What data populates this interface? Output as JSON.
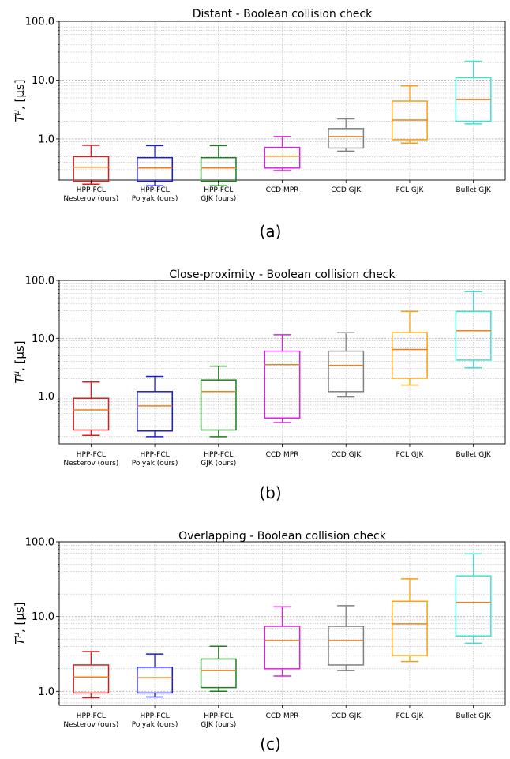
{
  "chart_data": [
    {
      "type": "box",
      "title": "Distant - Boolean collision check",
      "ylabel": "T^μ, [μs]",
      "ylabel_main": "T",
      "ylabel_sup": "μ",
      "ylabel_rest": ", [μs]",
      "yscale": "log",
      "ylim": [
        0.2,
        100
      ],
      "yticks": [
        "1.0",
        "10.0",
        "100.0"
      ],
      "grid": true,
      "caption": "(a)",
      "series": [
        {
          "label": [
            "HPP-FCL",
            "Nesterov (ours)"
          ],
          "color": "#d62020",
          "whislo": 0.17,
          "q1": 0.19,
          "median": 0.33,
          "q3": 0.5,
          "whishi": 0.78
        },
        {
          "label": [
            "HPP-FCL",
            "Polyak (ours)"
          ],
          "color": "#1a1ae0",
          "whislo": 0.16,
          "q1": 0.19,
          "median": 0.32,
          "q3": 0.48,
          "whishi": 0.77
        },
        {
          "label": [
            "HPP-FCL",
            "GJK (ours)"
          ],
          "color": "#1e7d1e",
          "whislo": 0.16,
          "q1": 0.19,
          "median": 0.32,
          "q3": 0.48,
          "whishi": 0.77
        },
        {
          "label": [
            "CCD MPR"
          ],
          "color": "#e020e0",
          "whislo": 0.29,
          "q1": 0.32,
          "median": 0.51,
          "q3": 0.72,
          "whishi": 1.1
        },
        {
          "label": [
            "CCD GJK"
          ],
          "color": "#808080",
          "whislo": 0.62,
          "q1": 0.7,
          "median": 1.1,
          "q3": 1.5,
          "whishi": 2.2
        },
        {
          "label": [
            "FCL GJK"
          ],
          "color": "#f5a010",
          "whislo": 0.85,
          "q1": 0.97,
          "median": 2.1,
          "q3": 4.4,
          "whishi": 8.0
        },
        {
          "label": [
            "Bullet GJK"
          ],
          "color": "#40e0d0",
          "whislo": 1.8,
          "q1": 2.0,
          "median": 4.7,
          "q3": 11.0,
          "whishi": 21.0
        }
      ]
    },
    {
      "type": "box",
      "title": "Close-proximity - Boolean collision check",
      "ylabel": "T^μ, [μs]",
      "ylabel_main": "T",
      "ylabel_sup": "μ",
      "ylabel_rest": ", [μs]",
      "yscale": "log",
      "ylim": [
        0.15,
        100
      ],
      "yticks": [
        "1.0",
        "10.0",
        "100.0"
      ],
      "grid": true,
      "caption": "(b)",
      "series": [
        {
          "label": [
            "HPP-FCL",
            "Nesterov (ours)"
          ],
          "color": "#d62020",
          "whislo": 0.21,
          "q1": 0.26,
          "median": 0.58,
          "q3": 0.92,
          "whishi": 1.75
        },
        {
          "label": [
            "HPP-FCL",
            "Polyak (ours)"
          ],
          "color": "#1a1ae0",
          "whislo": 0.2,
          "q1": 0.25,
          "median": 0.68,
          "q3": 1.2,
          "whishi": 2.2
        },
        {
          "label": [
            "HPP-FCL",
            "GJK (ours)"
          ],
          "color": "#1e7d1e",
          "whislo": 0.2,
          "q1": 0.26,
          "median": 1.2,
          "q3": 1.9,
          "whishi": 3.3
        },
        {
          "label": [
            "CCD MPR"
          ],
          "color": "#e020e0",
          "whislo": 0.35,
          "q1": 0.42,
          "median": 3.5,
          "q3": 6.0,
          "whishi": 11.5
        },
        {
          "label": [
            "CCD GJK"
          ],
          "color": "#808080",
          "whislo": 0.97,
          "q1": 1.2,
          "median": 3.4,
          "q3": 6.0,
          "whishi": 12.5
        },
        {
          "label": [
            "FCL GJK"
          ],
          "color": "#f5a010",
          "whislo": 1.55,
          "q1": 2.05,
          "median": 6.4,
          "q3": 12.5,
          "whishi": 29.0
        },
        {
          "label": [
            "Bullet GJK"
          ],
          "color": "#40e0d0",
          "whislo": 3.1,
          "q1": 4.2,
          "median": 13.5,
          "q3": 29.0,
          "whishi": 64.0
        }
      ]
    },
    {
      "type": "box",
      "title": "Overlapping - Boolean collision check",
      "ylabel": "T^μ, [μs]",
      "ylabel_main": "T",
      "ylabel_sup": "μ",
      "ylabel_rest": ", [μs]",
      "yscale": "log",
      "ylim": [
        0.65,
        100
      ],
      "yticks": [
        "1.0",
        "10.0",
        "100.0"
      ],
      "grid": true,
      "caption": "(c)",
      "series": [
        {
          "label": [
            "HPP-FCL",
            "Nesterov (ours)"
          ],
          "color": "#d62020",
          "whislo": 0.82,
          "q1": 0.95,
          "median": 1.55,
          "q3": 2.25,
          "whishi": 3.4
        },
        {
          "label": [
            "HPP-FCL",
            "Polyak (ours)"
          ],
          "color": "#1a1ae0",
          "whislo": 0.84,
          "q1": 0.95,
          "median": 1.52,
          "q3": 2.1,
          "whishi": 3.15
        },
        {
          "label": [
            "HPP-FCL",
            "GJK (ours)"
          ],
          "color": "#1e7d1e",
          "whislo": 1.0,
          "q1": 1.12,
          "median": 1.9,
          "q3": 2.7,
          "whishi": 4.0
        },
        {
          "label": [
            "CCD MPR"
          ],
          "color": "#e020e0",
          "whislo": 1.6,
          "q1": 2.0,
          "median": 4.8,
          "q3": 7.4,
          "whishi": 13.5
        },
        {
          "label": [
            "CCD GJK"
          ],
          "color": "#808080",
          "whislo": 1.9,
          "q1": 2.25,
          "median": 4.8,
          "q3": 7.4,
          "whishi": 14.0
        },
        {
          "label": [
            "FCL GJK"
          ],
          "color": "#f5a010",
          "whislo": 2.5,
          "q1": 3.0,
          "median": 8.0,
          "q3": 16.0,
          "whishi": 32.0
        },
        {
          "label": [
            "Bullet GJK"
          ],
          "color": "#40e0d0",
          "whislo": 4.4,
          "q1": 5.5,
          "median": 15.5,
          "q3": 35.0,
          "whishi": 69.0
        }
      ]
    }
  ],
  "median_color": "#f07f1a"
}
